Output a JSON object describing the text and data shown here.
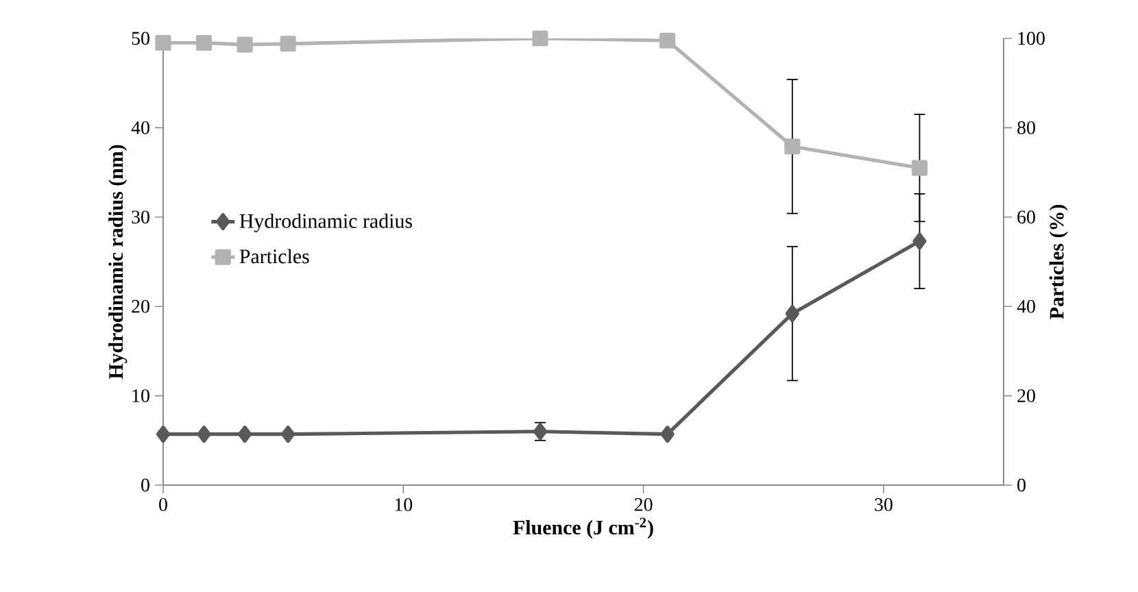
{
  "chart_data": {
    "type": "line",
    "xlabel": "Fluence (J cm$^{-2}$)",
    "ylabel": "Hydrodinamic radius (nm)",
    "y2label": "Particles (%)",
    "xlim": [
      0,
      35
    ],
    "xticks": [
      0,
      10,
      20,
      30
    ],
    "ylim": [
      0,
      50
    ],
    "yticks": [
      0,
      10,
      20,
      30,
      40,
      50
    ],
    "y2lim": [
      0,
      100
    ],
    "y2ticks": [
      0,
      20,
      40,
      60,
      80,
      100
    ],
    "x": [
      0,
      1.7,
      3.4,
      5.2,
      15.7,
      21.0,
      26.2,
      31.5
    ],
    "series": [
      {
        "name": "Hydrodinamic radius",
        "color": "#595959",
        "marker": "diamond",
        "values": [
          5.7,
          5.7,
          5.7,
          5.7,
          6.0,
          5.7,
          19.2,
          27.3
        ],
        "errors": [
          null,
          null,
          null,
          null,
          1.0,
          null,
          7.5,
          5.3
        ]
      },
      {
        "name": "Particles",
        "color": "#b3b3b3",
        "marker": "square",
        "axis": "y2",
        "values": [
          99.0,
          99.0,
          98.6,
          98.8,
          100,
          99.5,
          75.8,
          71.0
        ],
        "errors": [
          null,
          null,
          null,
          null,
          null,
          null,
          15,
          12
        ]
      }
    ],
    "legend": "left",
    "grid": false
  }
}
